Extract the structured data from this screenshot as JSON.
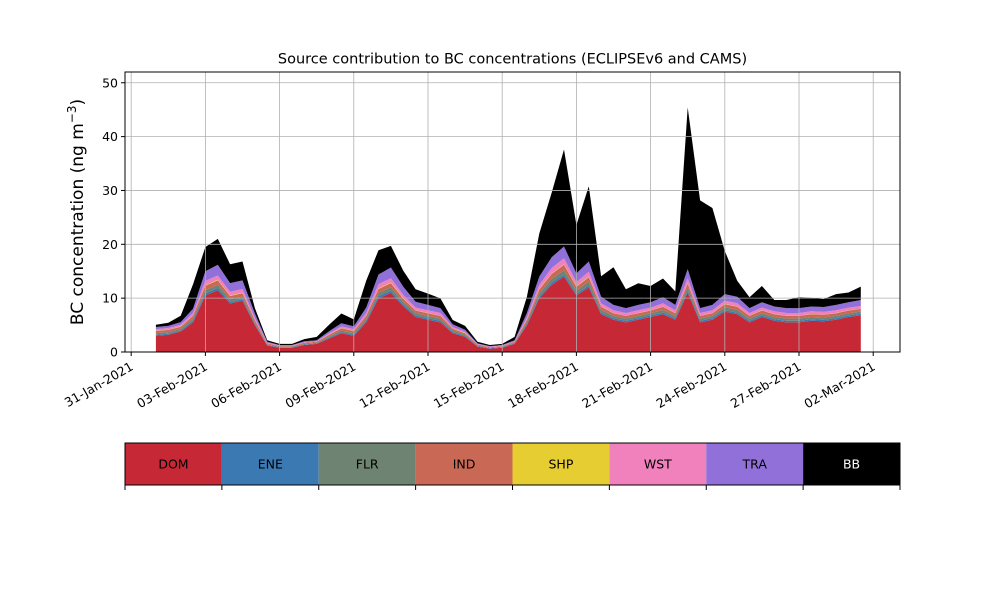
{
  "chart_data": {
    "type": "area",
    "stacked": true,
    "title": "Source contribution to BC concentrations (ECLIPSEv6 and CAMS)",
    "ylabel": "BC concentration (ng m",
    "ylabel_sup": "−3",
    "ylabel_close": ")",
    "xlabel": "",
    "ylim": [
      0,
      52
    ],
    "xlim": [
      "2021-01-30T18:00",
      "2021-03-03T02:00"
    ],
    "yticks": [
      0,
      10,
      20,
      30,
      40,
      50
    ],
    "xticks": [
      "31-Jan-2021",
      "03-Feb-2021",
      "06-Feb-2021",
      "09-Feb-2021",
      "12-Feb-2021",
      "15-Feb-2021",
      "18-Feb-2021",
      "21-Feb-2021",
      "24-Feb-2021",
      "27-Feb-2021",
      "02-Mar-2021"
    ],
    "grid": true,
    "legend_placement": "below chart, horizontal color bar",
    "legend": [
      {
        "label": "DOM",
        "color": "#c62836"
      },
      {
        "label": "ENE",
        "color": "#3b79b3"
      },
      {
        "label": "FLR",
        "color": "#6e8372"
      },
      {
        "label": "IND",
        "color": "#c96855"
      },
      {
        "label": "SHP",
        "color": "#e6cd31"
      },
      {
        "label": "WST",
        "color": "#f081bd"
      },
      {
        "label": "TRA",
        "color": "#9170d9"
      },
      {
        "label": "BB",
        "color": "#000000"
      }
    ],
    "x": [
      "2021-02-01T00:00",
      "2021-02-01T12:00",
      "2021-02-02T00:00",
      "2021-02-02T12:00",
      "2021-02-03T00:00",
      "2021-02-03T12:00",
      "2021-02-04T00:00",
      "2021-02-04T12:00",
      "2021-02-05T00:00",
      "2021-02-05T12:00",
      "2021-02-06T00:00",
      "2021-02-06T12:00",
      "2021-02-07T00:00",
      "2021-02-07T12:00",
      "2021-02-08T00:00",
      "2021-02-08T12:00",
      "2021-02-09T00:00",
      "2021-02-09T12:00",
      "2021-02-10T00:00",
      "2021-02-10T12:00",
      "2021-02-11T00:00",
      "2021-02-11T12:00",
      "2021-02-12T00:00",
      "2021-02-12T12:00",
      "2021-02-13T00:00",
      "2021-02-13T12:00",
      "2021-02-14T00:00",
      "2021-02-14T12:00",
      "2021-02-15T00:00",
      "2021-02-15T12:00",
      "2021-02-16T00:00",
      "2021-02-16T12:00",
      "2021-02-17T00:00",
      "2021-02-17T12:00",
      "2021-02-18T00:00",
      "2021-02-18T12:00",
      "2021-02-19T00:00",
      "2021-02-19T12:00",
      "2021-02-20T00:00",
      "2021-02-20T12:00",
      "2021-02-21T00:00",
      "2021-02-21T12:00",
      "2021-02-22T00:00",
      "2021-02-22T12:00",
      "2021-02-23T00:00",
      "2021-02-23T12:00",
      "2021-02-24T00:00",
      "2021-02-24T12:00",
      "2021-02-25T00:00",
      "2021-02-25T12:00",
      "2021-02-26T00:00",
      "2021-02-26T12:00",
      "2021-02-27T00:00",
      "2021-02-27T12:00",
      "2021-02-28T00:00",
      "2021-02-28T12:00",
      "2021-03-01T00:00",
      "2021-03-01T12:00"
    ],
    "series": [
      {
        "name": "DOM",
        "values": [
          3,
          3.2,
          3.8,
          5.5,
          10.5,
          11.5,
          9,
          9.5,
          5,
          1.2,
          0.8,
          0.8,
          1.3,
          1.5,
          2.5,
          3.5,
          3,
          5.5,
          10,
          11,
          8.5,
          6.5,
          6,
          5.5,
          3.5,
          2.8,
          1,
          0.6,
          0.8,
          1.5,
          5,
          10,
          12.5,
          14,
          10.5,
          12,
          7,
          6,
          5.5,
          6,
          6.5,
          7,
          6,
          11,
          5.5,
          6,
          7.5,
          7,
          5.5,
          6.5,
          5.8,
          5.5,
          5.5,
          5.8,
          5.7,
          6,
          6.5,
          6.8
        ]
      },
      {
        "name": "ENE",
        "values": [
          0.2,
          0.2,
          0.2,
          0.3,
          0.4,
          0.4,
          0.3,
          0.3,
          0.2,
          0.1,
          0.1,
          0.1,
          0.1,
          0.1,
          0.2,
          0.2,
          0.2,
          0.3,
          0.4,
          0.4,
          0.3,
          0.3,
          0.3,
          0.3,
          0.2,
          0.2,
          0.1,
          0.1,
          0.1,
          0.1,
          0.2,
          0.3,
          0.4,
          0.4,
          0.3,
          0.4,
          0.3,
          0.3,
          0.3,
          0.3,
          0.3,
          0.3,
          0.3,
          0.4,
          0.3,
          0.3,
          0.3,
          0.3,
          0.3,
          0.3,
          0.3,
          0.3,
          0.3,
          0.3,
          0.3,
          0.3,
          0.3,
          0.3
        ]
      },
      {
        "name": "FLR",
        "values": [
          0.3,
          0.3,
          0.3,
          0.4,
          0.6,
          0.6,
          0.5,
          0.5,
          0.3,
          0.1,
          0.1,
          0.1,
          0.1,
          0.1,
          0.2,
          0.3,
          0.3,
          0.4,
          0.6,
          0.6,
          0.5,
          0.4,
          0.4,
          0.4,
          0.3,
          0.2,
          0.1,
          0.1,
          0.1,
          0.1,
          0.4,
          0.6,
          0.7,
          0.8,
          0.6,
          0.7,
          0.5,
          0.4,
          0.4,
          0.4,
          0.4,
          0.5,
          0.4,
          0.6,
          0.4,
          0.4,
          0.5,
          0.5,
          0.4,
          0.4,
          0.4,
          0.4,
          0.4,
          0.4,
          0.4,
          0.4,
          0.4,
          0.4
        ]
      },
      {
        "name": "IND",
        "values": [
          0.4,
          0.4,
          0.4,
          0.5,
          0.8,
          0.8,
          0.6,
          0.6,
          0.4,
          0.2,
          0.1,
          0.1,
          0.2,
          0.2,
          0.3,
          0.4,
          0.4,
          0.5,
          0.7,
          0.8,
          0.6,
          0.5,
          0.5,
          0.5,
          0.3,
          0.3,
          0.2,
          0.1,
          0.1,
          0.2,
          0.4,
          0.7,
          0.9,
          1,
          0.7,
          0.8,
          0.6,
          0.5,
          0.5,
          0.5,
          0.5,
          0.6,
          0.5,
          0.7,
          0.5,
          0.5,
          0.6,
          0.6,
          0.5,
          0.5,
          0.5,
          0.5,
          0.5,
          0.5,
          0.5,
          0.5,
          0.5,
          0.5
        ]
      },
      {
        "name": "SHP",
        "values": [
          0.05,
          0.05,
          0.05,
          0.05,
          0.1,
          0.1,
          0.1,
          0.1,
          0.05,
          0,
          0,
          0,
          0,
          0,
          0.05,
          0.05,
          0.05,
          0.05,
          0.1,
          0.1,
          0.1,
          0.05,
          0.05,
          0.05,
          0.05,
          0.05,
          0,
          0,
          0,
          0,
          0.05,
          0.1,
          0.1,
          0.1,
          0.1,
          0.1,
          0.05,
          0.05,
          0.05,
          0.05,
          0.05,
          0.05,
          0.05,
          0.1,
          0.05,
          0.05,
          0.05,
          0.05,
          0.05,
          0.05,
          0.05,
          0.05,
          0.05,
          0.05,
          0.05,
          0.05,
          0.05,
          0.05
        ]
      },
      {
        "name": "WST",
        "values": [
          0.3,
          0.3,
          0.3,
          0.5,
          0.8,
          0.8,
          0.7,
          0.7,
          0.4,
          0.1,
          0.1,
          0.1,
          0.1,
          0.1,
          0.2,
          0.3,
          0.3,
          0.5,
          0.8,
          0.8,
          0.6,
          0.5,
          0.5,
          0.5,
          0.3,
          0.2,
          0.1,
          0.1,
          0.1,
          0.1,
          0.4,
          0.8,
          1,
          1.1,
          0.8,
          0.9,
          0.6,
          0.5,
          0.5,
          0.5,
          0.5,
          0.6,
          0.5,
          0.9,
          0.5,
          0.5,
          0.6,
          0.6,
          0.5,
          0.5,
          0.5,
          0.5,
          0.5,
          0.5,
          0.5,
          0.5,
          0.5,
          0.5
        ]
      },
      {
        "name": "TRA",
        "values": [
          0.4,
          0.4,
          0.5,
          0.8,
          1.8,
          2,
          1.6,
          1.6,
          0.8,
          0.2,
          0.1,
          0.1,
          0.2,
          0.2,
          0.4,
          0.6,
          0.5,
          1,
          1.8,
          2,
          1.5,
          1.1,
          1,
          0.9,
          0.5,
          0.4,
          0.1,
          0.1,
          0.1,
          0.2,
          0.8,
          1.5,
          2,
          2.2,
          1.6,
          1.9,
          1.2,
          1,
          0.9,
          1,
          1,
          1.1,
          1,
          1.7,
          0.9,
          1,
          1.2,
          1.2,
          0.9,
          1,
          0.9,
          0.9,
          0.9,
          0.9,
          0.9,
          1,
          1,
          1.1
        ]
      },
      {
        "name": "BB",
        "values": [
          0.4,
          0.6,
          1.2,
          4.5,
          4.5,
          4.8,
          3.5,
          3.5,
          1,
          0.3,
          0.2,
          0.2,
          0.4,
          0.6,
          1.2,
          1.8,
          1.3,
          5,
          4.5,
          4,
          3,
          2.3,
          2.1,
          1.8,
          0.8,
          0.7,
          0.3,
          0.2,
          0.2,
          0.6,
          3,
          8,
          12,
          18,
          9,
          14,
          3.8,
          7,
          3.5,
          4,
          3,
          3.5,
          2.5,
          30,
          20,
          18,
          8,
          3,
          2,
          3,
          1.2,
          1.5,
          2,
          1.6,
          1.5,
          2,
          1.8,
          2.5
        ]
      }
    ]
  }
}
